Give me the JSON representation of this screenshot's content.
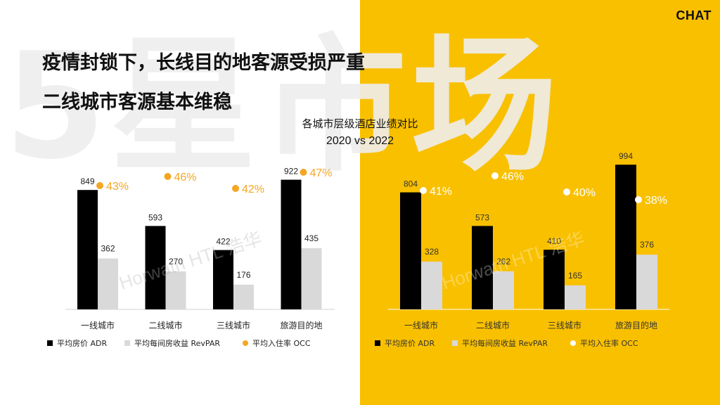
{
  "header": {
    "background_text": "5星市场",
    "brand": "CHAT",
    "headline_line1": "疫情封锁下，长线目的地客源受损严重",
    "headline_line2": "二线城市客源基本维稳"
  },
  "watermark": "Horwath HTL 浩华",
  "chart_data": [
    {
      "type": "bar",
      "title": "各城市层级酒店业绩对比",
      "subtitle": "2020 vs 2022",
      "categories": [
        "一线城市",
        "二线城市",
        "三线城市",
        "旅游目的地"
      ],
      "series": [
        {
          "name": "平均房价 ADR",
          "values": [
            849,
            593,
            422,
            922
          ],
          "color": "#000000"
        },
        {
          "name": "平均每间房收益 RevPAR",
          "values": [
            362,
            270,
            176,
            435
          ],
          "color": "#D9D9D9"
        },
        {
          "name": "平均入住率 OCC",
          "values": [
            "43%",
            "46%",
            "42%",
            "47%"
          ],
          "color": "#F5A623",
          "kind": "dot-label"
        }
      ],
      "legend_position": "bottom",
      "grid": false
    },
    {
      "type": "bar",
      "categories": [
        "一线城市",
        "二线城市",
        "三线城市",
        "旅游目的地"
      ],
      "series": [
        {
          "name": "平均房价 ADR",
          "values": [
            804,
            573,
            410,
            994
          ],
          "color": "#000000"
        },
        {
          "name": "平均每间房收益 RevPAR",
          "values": [
            328,
            262,
            165,
            376
          ],
          "color": "#D9D9D9"
        },
        {
          "name": "平均入住率 OCC",
          "values": [
            "41%",
            "46%",
            "40%",
            "38%"
          ],
          "color": "#FFFFFF",
          "kind": "dot-label"
        }
      ],
      "legend_position": "bottom",
      "grid": false
    }
  ]
}
